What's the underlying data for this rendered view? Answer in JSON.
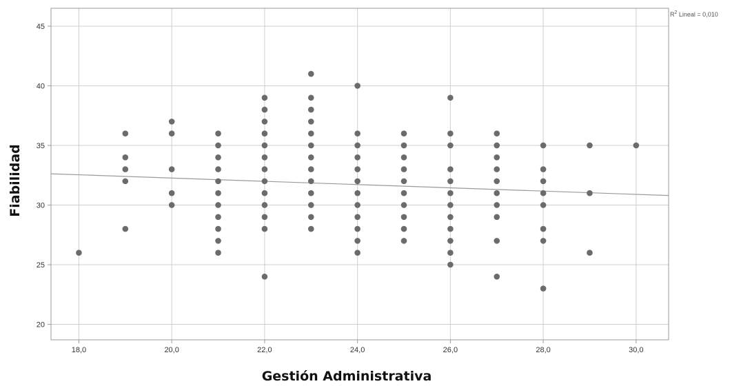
{
  "chart_data": {
    "type": "scatter",
    "title": "",
    "xlabel": "Gestión Administrativa",
    "ylabel": "Fiabilidad",
    "xlim": [
      17.4,
      30.7
    ],
    "ylim": [
      18.7,
      46.5
    ],
    "x_ticks": [
      18,
      20,
      22,
      24,
      26,
      28,
      30
    ],
    "x_tick_labels": [
      "18,0",
      "20,0",
      "22,0",
      "24,0",
      "26,0",
      "28,0",
      "30,0"
    ],
    "y_ticks": [
      20,
      25,
      30,
      35,
      40,
      45
    ],
    "y_tick_labels": [
      "20",
      "25",
      "30",
      "35",
      "40",
      "45"
    ],
    "grid": true,
    "point_color": "#6b6b6b",
    "line_color": "#999999",
    "fit_line": {
      "label_prefix": "R",
      "label_exp": "2",
      "label_rest": " Lineal = 0,010",
      "points": [
        [
          17.4,
          32.62
        ],
        [
          30.7,
          30.8
        ]
      ]
    },
    "points": [
      [
        18,
        26
      ],
      [
        19,
        36
      ],
      [
        19,
        34
      ],
      [
        19,
        33
      ],
      [
        19,
        32
      ],
      [
        19,
        28
      ],
      [
        20,
        37
      ],
      [
        20,
        36
      ],
      [
        20,
        33
      ],
      [
        20,
        31
      ],
      [
        20,
        30
      ],
      [
        21,
        36
      ],
      [
        21,
        35
      ],
      [
        21,
        34
      ],
      [
        21,
        33
      ],
      [
        21,
        32
      ],
      [
        21,
        31
      ],
      [
        21,
        30
      ],
      [
        21,
        29
      ],
      [
        21,
        28
      ],
      [
        21,
        27
      ],
      [
        21,
        26
      ],
      [
        22,
        39
      ],
      [
        22,
        38
      ],
      [
        22,
        37
      ],
      [
        22,
        36
      ],
      [
        22,
        35
      ],
      [
        22,
        34
      ],
      [
        22,
        33
      ],
      [
        22,
        32
      ],
      [
        22,
        31
      ],
      [
        22,
        30
      ],
      [
        22,
        29
      ],
      [
        22,
        28
      ],
      [
        22,
        24
      ],
      [
        23,
        41
      ],
      [
        23,
        39
      ],
      [
        23,
        38
      ],
      [
        23,
        37
      ],
      [
        23,
        36
      ],
      [
        23,
        35
      ],
      [
        23,
        34
      ],
      [
        23,
        33
      ],
      [
        23,
        32
      ],
      [
        23,
        31
      ],
      [
        23,
        30
      ],
      [
        23,
        29
      ],
      [
        23,
        28
      ],
      [
        24,
        40
      ],
      [
        24,
        36
      ],
      [
        24,
        35
      ],
      [
        24,
        34
      ],
      [
        24,
        33
      ],
      [
        24,
        32
      ],
      [
        24,
        31
      ],
      [
        24,
        30
      ],
      [
        24,
        29
      ],
      [
        24,
        28
      ],
      [
        24,
        27
      ],
      [
        24,
        26
      ],
      [
        25,
        36
      ],
      [
        25,
        35
      ],
      [
        25,
        34
      ],
      [
        25,
        33
      ],
      [
        25,
        32
      ],
      [
        25,
        31
      ],
      [
        25,
        30
      ],
      [
        25,
        29
      ],
      [
        25,
        28
      ],
      [
        25,
        27
      ],
      [
        26,
        39
      ],
      [
        26,
        36
      ],
      [
        26,
        35
      ],
      [
        26,
        33
      ],
      [
        26,
        32
      ],
      [
        26,
        31
      ],
      [
        26,
        30
      ],
      [
        26,
        29
      ],
      [
        26,
        28
      ],
      [
        26,
        27
      ],
      [
        26,
        26
      ],
      [
        26,
        25
      ],
      [
        27,
        36
      ],
      [
        27,
        35
      ],
      [
        27,
        34
      ],
      [
        27,
        33
      ],
      [
        27,
        32
      ],
      [
        27,
        31
      ],
      [
        27,
        30
      ],
      [
        27,
        29
      ],
      [
        27,
        27
      ],
      [
        27,
        24
      ],
      [
        28,
        35
      ],
      [
        28,
        33
      ],
      [
        28,
        32
      ],
      [
        28,
        31
      ],
      [
        28,
        30
      ],
      [
        28,
        28
      ],
      [
        28,
        27
      ],
      [
        28,
        23
      ],
      [
        29,
        35
      ],
      [
        29,
        31
      ],
      [
        29,
        26
      ],
      [
        30,
        35
      ]
    ]
  }
}
